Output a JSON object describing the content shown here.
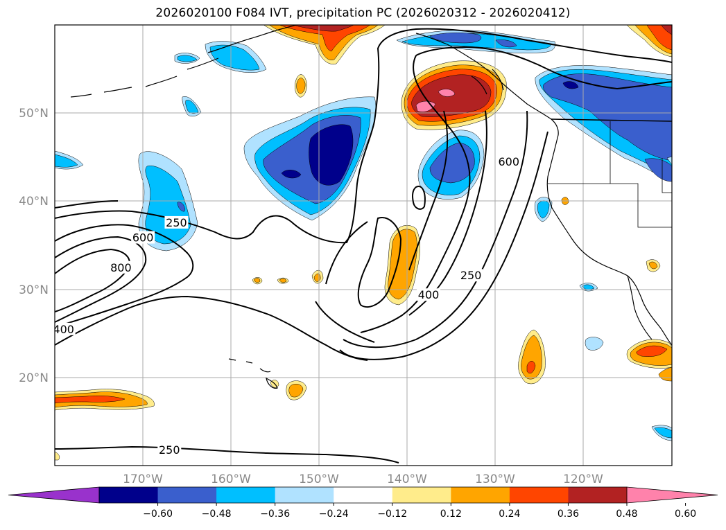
{
  "title": "2026020100 F084 IVT, precipitation PC (2026020312 - 2026020412)",
  "map": {
    "lon_range": [
      -180,
      -110
    ],
    "lat_range": [
      10,
      60
    ],
    "grid": true,
    "lon_ticks": [
      {
        "value": -170,
        "label": "170°W"
      },
      {
        "value": -160,
        "label": "160°W"
      },
      {
        "value": -150,
        "label": "150°W"
      },
      {
        "value": -140,
        "label": "140°W"
      },
      {
        "value": -130,
        "label": "130°W"
      },
      {
        "value": -120,
        "label": "120°W"
      }
    ],
    "lat_ticks": [
      {
        "value": 20,
        "label": "20°N"
      },
      {
        "value": 30,
        "label": "30°N"
      },
      {
        "value": 40,
        "label": "40°N"
      },
      {
        "value": 50,
        "label": "50°N"
      }
    ],
    "contour_labels": [
      {
        "text": "250",
        "lon": -166.2,
        "lat": 37.6
      },
      {
        "text": "600",
        "lon": -170.0,
        "lat": 35.9
      },
      {
        "text": "800",
        "lon": -172.5,
        "lat": 32.5
      },
      {
        "text": "400",
        "lon": -179.0,
        "lat": 25.5
      },
      {
        "text": "250",
        "lon": -167.0,
        "lat": 11.8
      },
      {
        "text": "600",
        "lon": -128.5,
        "lat": 44.5
      },
      {
        "text": "400",
        "lon": -137.6,
        "lat": 29.4
      },
      {
        "text": "250",
        "lon": -132.8,
        "lat": 31.6
      }
    ]
  },
  "colorbar": {
    "colors": [
      "#9932cc",
      "#00008b",
      "#3a5fcd",
      "#00bfff",
      "#b0e2ff",
      "#ffffff",
      "#ffec8b",
      "#ffa500",
      "#ff4500",
      "#b22222",
      "#ff82ab"
    ],
    "tick_labels": [
      "−0.60",
      "−0.48",
      "−0.36",
      "−0.24",
      "−0.12",
      "0.12",
      "0.24",
      "0.36",
      "0.48",
      "0.60"
    ],
    "extend": "both"
  }
}
